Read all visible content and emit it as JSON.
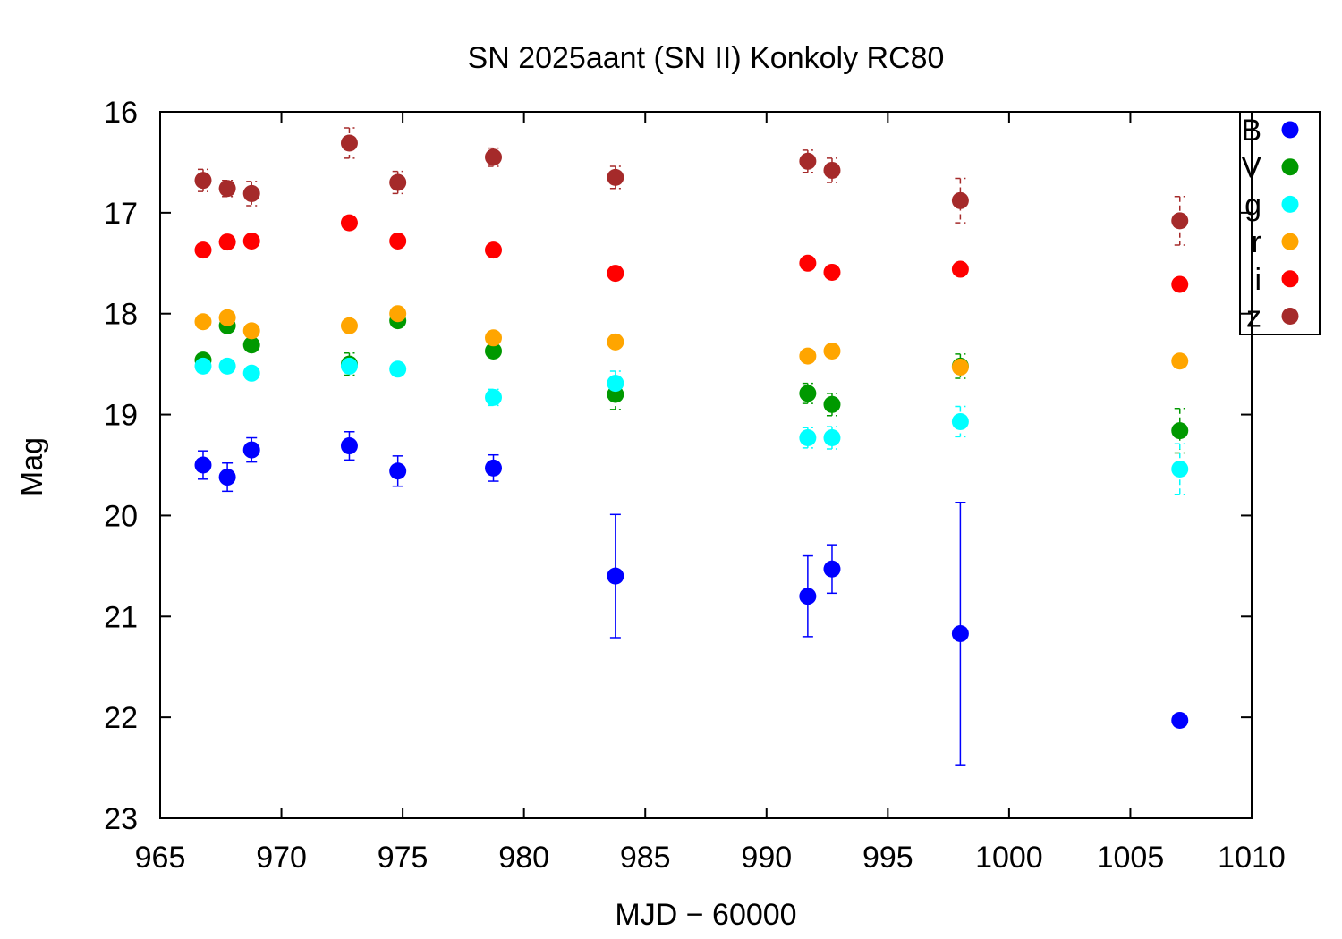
{
  "chart_data": {
    "type": "scatter",
    "title": "SN 2025aant (SN II) Konkoly RC80",
    "xlabel": "MJD − 60000",
    "ylabel": "Mag",
    "xlim": [
      965,
      1010
    ],
    "ylim": [
      23,
      16
    ],
    "y_inverted": true,
    "grid": false,
    "legend_position": "top-right",
    "xticks": [
      "965",
      "970",
      "975",
      "980",
      "985",
      "990",
      "995",
      "1000",
      "1005",
      "1010"
    ],
    "yticks": [
      "16",
      "17",
      "18",
      "19",
      "20",
      "21",
      "22",
      "23"
    ],
    "series": [
      {
        "name": "B",
        "color": "#0000ff",
        "errbar_style": "solid",
        "points": [
          {
            "x": 966.77,
            "y": 19.5,
            "err": 0.14
          },
          {
            "x": 967.77,
            "y": 19.62,
            "err": 0.14
          },
          {
            "x": 968.77,
            "y": 19.35,
            "err": 0.12
          },
          {
            "x": 972.8,
            "y": 19.31,
            "err": 0.14
          },
          {
            "x": 974.8,
            "y": 19.56,
            "err": 0.15
          },
          {
            "x": 978.74,
            "y": 19.53,
            "err": 0.13
          },
          {
            "x": 983.77,
            "y": 20.6,
            "err": 0.61
          },
          {
            "x": 991.7,
            "y": 20.8,
            "err": 0.4
          },
          {
            "x": 992.7,
            "y": 20.53,
            "err": 0.24
          },
          {
            "x": 997.99,
            "y": 21.17,
            "err": 1.3
          },
          {
            "x": 1007.04,
            "y": 22.03,
            "err": 0.06
          }
        ]
      },
      {
        "name": "V",
        "color": "#009900",
        "errbar_style": "dashed",
        "points": [
          {
            "x": 966.77,
            "y": 18.46,
            "err": 0.05
          },
          {
            "x": 967.77,
            "y": 18.12,
            "err": 0.05
          },
          {
            "x": 968.77,
            "y": 18.31,
            "err": 0.05
          },
          {
            "x": 972.8,
            "y": 18.5,
            "err": 0.11
          },
          {
            "x": 974.8,
            "y": 18.07,
            "err": 0.04
          },
          {
            "x": 978.74,
            "y": 18.37,
            "err": 0.05
          },
          {
            "x": 983.77,
            "y": 18.8,
            "err": 0.15
          },
          {
            "x": 991.7,
            "y": 18.79,
            "err": 0.1
          },
          {
            "x": 992.7,
            "y": 18.9,
            "err": 0.11
          },
          {
            "x": 997.99,
            "y": 18.52,
            "err": 0.12
          },
          {
            "x": 1007.04,
            "y": 19.16,
            "err": 0.22
          }
        ]
      },
      {
        "name": "g",
        "color": "#00ffff",
        "errbar_style": "dashed",
        "points": [
          {
            "x": 966.77,
            "y": 18.52,
            "err": 0.04
          },
          {
            "x": 967.77,
            "y": 18.52,
            "err": 0.04
          },
          {
            "x": 968.77,
            "y": 18.59,
            "err": 0.04
          },
          {
            "x": 972.8,
            "y": 18.52,
            "err": 0.06
          },
          {
            "x": 974.8,
            "y": 18.55,
            "err": 0.04
          },
          {
            "x": 978.74,
            "y": 18.83,
            "err": 0.08
          },
          {
            "x": 983.77,
            "y": 18.69,
            "err": 0.12
          },
          {
            "x": 991.7,
            "y": 19.23,
            "err": 0.1
          },
          {
            "x": 992.7,
            "y": 19.23,
            "err": 0.11
          },
          {
            "x": 997.99,
            "y": 19.07,
            "err": 0.15
          },
          {
            "x": 1007.04,
            "y": 19.54,
            "err": 0.25
          }
        ]
      },
      {
        "name": "r",
        "color": "#ffa500",
        "errbar_style": "dashed",
        "points": [
          {
            "x": 966.77,
            "y": 18.08,
            "err": 0.03
          },
          {
            "x": 967.77,
            "y": 18.04,
            "err": 0.03
          },
          {
            "x": 968.77,
            "y": 18.17,
            "err": 0.03
          },
          {
            "x": 972.8,
            "y": 18.12,
            "err": 0.05
          },
          {
            "x": 974.8,
            "y": 18.0,
            "err": 0.03
          },
          {
            "x": 978.74,
            "y": 18.24,
            "err": 0.03
          },
          {
            "x": 983.77,
            "y": 18.28,
            "err": 0.03
          },
          {
            "x": 991.7,
            "y": 18.42,
            "err": 0.03
          },
          {
            "x": 992.7,
            "y": 18.37,
            "err": 0.03
          },
          {
            "x": 997.99,
            "y": 18.53,
            "err": 0.04
          },
          {
            "x": 1007.04,
            "y": 18.47,
            "err": 0.03
          }
        ]
      },
      {
        "name": "i",
        "color": "#ff0000",
        "errbar_style": "dashed",
        "points": [
          {
            "x": 966.77,
            "y": 17.37,
            "err": 0.03
          },
          {
            "x": 967.77,
            "y": 17.29,
            "err": 0.03
          },
          {
            "x": 968.77,
            "y": 17.28,
            "err": 0.03
          },
          {
            "x": 972.8,
            "y": 17.1,
            "err": 0.04
          },
          {
            "x": 974.8,
            "y": 17.28,
            "err": 0.03
          },
          {
            "x": 978.74,
            "y": 17.37,
            "err": 0.03
          },
          {
            "x": 983.77,
            "y": 17.6,
            "err": 0.04
          },
          {
            "x": 991.7,
            "y": 17.5,
            "err": 0.03
          },
          {
            "x": 992.7,
            "y": 17.59,
            "err": 0.03
          },
          {
            "x": 997.99,
            "y": 17.56,
            "err": 0.04
          },
          {
            "x": 1007.04,
            "y": 17.71,
            "err": 0.04
          }
        ]
      },
      {
        "name": "z",
        "color": "#a52a2a",
        "errbar_style": "dashed",
        "points": [
          {
            "x": 966.77,
            "y": 16.68,
            "err": 0.11
          },
          {
            "x": 967.77,
            "y": 16.76,
            "err": 0.08
          },
          {
            "x": 968.77,
            "y": 16.81,
            "err": 0.12
          },
          {
            "x": 972.8,
            "y": 16.31,
            "err": 0.15
          },
          {
            "x": 974.8,
            "y": 16.7,
            "err": 0.11
          },
          {
            "x": 978.74,
            "y": 16.45,
            "err": 0.09
          },
          {
            "x": 983.77,
            "y": 16.65,
            "err": 0.11
          },
          {
            "x": 991.7,
            "y": 16.49,
            "err": 0.11
          },
          {
            "x": 992.7,
            "y": 16.58,
            "err": 0.12
          },
          {
            "x": 997.99,
            "y": 16.88,
            "err": 0.22
          },
          {
            "x": 1007.04,
            "y": 17.08,
            "err": 0.24
          }
        ]
      }
    ]
  }
}
